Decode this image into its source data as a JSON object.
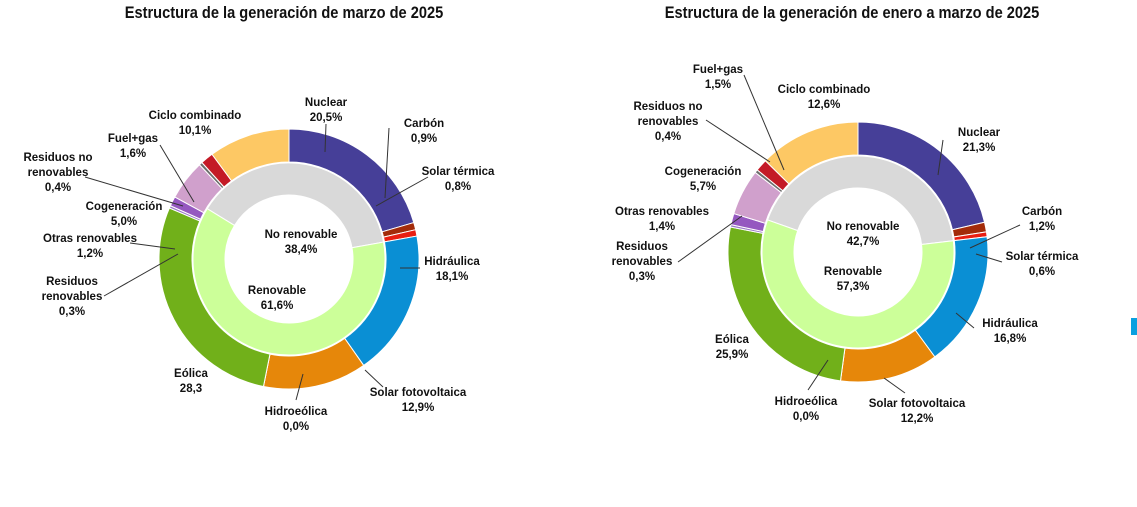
{
  "chart_data": [
    {
      "type": "pie",
      "title": "Estructura de la generación de marzo de 2025",
      "outer_series": [
        {
          "name": "Nuclear",
          "label": "Nuclear",
          "value_label": "20,5%",
          "value": 20.5,
          "color": "#463f98"
        },
        {
          "name": "Carbón",
          "label": "Carbón",
          "value_label": "0,9%",
          "value": 0.9,
          "color": "#a32b0a"
        },
        {
          "name": "Solar térmica",
          "label": "Solar térmica",
          "value_label": "0,8%",
          "value": 0.8,
          "color": "#e81e12"
        },
        {
          "name": "Hidráulica",
          "label": "Hidráulica",
          "value_label": "18,1%",
          "value": 18.1,
          "color": "#0a8fd4"
        },
        {
          "name": "Solar fotovoltaica",
          "label": "Solar fotovoltaica",
          "value_label": "12,9%",
          "value": 12.9,
          "color": "#e6870a"
        },
        {
          "name": "Hidroeólica",
          "label": "Hidroeólica",
          "value_label": "0,0%",
          "value": 0.0,
          "color": "#5aa02a"
        },
        {
          "name": "Eólica",
          "label": "Eólica",
          "value_label": "28,3",
          "value": 28.3,
          "color": "#71b01a"
        },
        {
          "name": "Residuos renovables",
          "label": "Residuos\nrenovables",
          "value_label": "0,3%",
          "value": 0.3,
          "color": "#9b78c8"
        },
        {
          "name": "Otras renovables",
          "label": "Otras renovables",
          "value_label": "1,2%",
          "value": 1.2,
          "color": "#9558c0"
        },
        {
          "name": "Cogeneración",
          "label": "Cogeneración",
          "value_label": "5,0%",
          "value": 5.0,
          "color": "#d0a0cc"
        },
        {
          "name": "Residuos no renovables",
          "label": "Residuos no\nrenovables",
          "value_label": "0,4%",
          "value": 0.4,
          "color": "#6e6e6e"
        },
        {
          "name": "Fuel+gas",
          "label": "Fuel+gas",
          "value_label": "1,6%",
          "value": 1.6,
          "color": "#c41a26"
        },
        {
          "name": "Ciclo combinado",
          "label": "Ciclo combinado",
          "value_label": "10,1%",
          "value": 10.1,
          "color": "#fdc864"
        }
      ],
      "inner_series": [
        {
          "name": "Renovable",
          "label": "Renovable",
          "value_label": "61,6%",
          "value": 61.6,
          "color": "#ccff99"
        },
        {
          "name": "No renovable",
          "label": "No renovable",
          "value_label": "38,4%",
          "value": 38.4,
          "color": "#d9d9d9"
        }
      ]
    },
    {
      "type": "pie",
      "title": "Estructura de la generación de enero a marzo de 2025",
      "outer_series": [
        {
          "name": "Nuclear",
          "label": "Nuclear",
          "value_label": "21,3%",
          "value": 21.3,
          "color": "#463f98"
        },
        {
          "name": "Carbón",
          "label": "Carbón",
          "value_label": "1,2%",
          "value": 1.2,
          "color": "#a32b0a"
        },
        {
          "name": "Solar térmica",
          "label": "Solar térmica",
          "value_label": "0,6%",
          "value": 0.6,
          "color": "#e81e12"
        },
        {
          "name": "Hidráulica",
          "label": "Hidráulica",
          "value_label": "16,8%",
          "value": 16.8,
          "color": "#0a8fd4"
        },
        {
          "name": "Solar fotovoltaica",
          "label": "Solar fotovoltaica",
          "value_label": "12,2%",
          "value": 12.2,
          "color": "#e6870a"
        },
        {
          "name": "Hidroeólica",
          "label": "Hidroeólica",
          "value_label": "0,0%",
          "value": 0.0,
          "color": "#5aa02a"
        },
        {
          "name": "Eólica",
          "label": "Eólica",
          "value_label": "25,9%",
          "value": 25.9,
          "color": "#71b01a"
        },
        {
          "name": "Residuos renovables",
          "label": "Residuos\nrenovables",
          "value_label": "0,3%",
          "value": 0.3,
          "color": "#9b78c8"
        },
        {
          "name": "Otras renovables",
          "label": "Otras renovables",
          "value_label": "1,4%",
          "value": 1.4,
          "color": "#9558c0"
        },
        {
          "name": "Cogeneración",
          "label": "Cogeneración",
          "value_label": "5,7%",
          "value": 5.7,
          "color": "#d0a0cc"
        },
        {
          "name": "Residuos no renovables",
          "label": "Residuos no\nrenovables",
          "value_label": "0,4%",
          "value": 0.4,
          "color": "#6e6e6e"
        },
        {
          "name": "Fuel+gas",
          "label": "Fuel+gas",
          "value_label": "1,5%",
          "value": 1.5,
          "color": "#c41a26"
        },
        {
          "name": "Ciclo combinado",
          "label": "Ciclo combinado",
          "value_label": "12,6%",
          "value": 12.6,
          "color": "#fdc864"
        }
      ],
      "inner_series": [
        {
          "name": "Renovable",
          "label": "Renovable",
          "value_label": "57,3%",
          "value": 57.3,
          "color": "#ccff99"
        },
        {
          "name": "No renovable",
          "label": "No renovable",
          "value_label": "42,7%",
          "value": 42.7,
          "color": "#d9d9d9"
        }
      ]
    }
  ]
}
